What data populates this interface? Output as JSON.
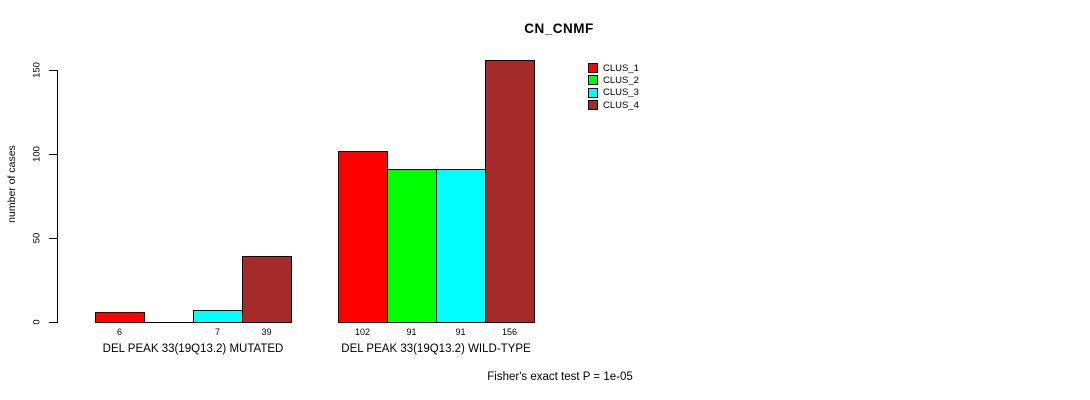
{
  "chart_data": {
    "type": "bar",
    "title": "CN_CNMF",
    "ylabel": "number of cases",
    "xlabel": "",
    "annotation": "Fisher's exact test P = 1e-05",
    "groups": [
      {
        "label": "DEL PEAK 33(19Q13.2) MUTATED"
      },
      {
        "label": "DEL PEAK 33(19Q13.2) WILD-TYPE"
      }
    ],
    "series": [
      {
        "name": "CLUS_1",
        "color": "#FF0000",
        "values": [
          6,
          102
        ]
      },
      {
        "name": "CLUS_2",
        "color": "#00FF00",
        "values": [
          0,
          91
        ]
      },
      {
        "name": "CLUS_3",
        "color": "#00FFFF",
        "values": [
          7,
          91
        ]
      },
      {
        "name": "CLUS_4",
        "color": "#A52A2A",
        "values": [
          39,
          156
        ]
      }
    ],
    "bar_value_labels": [
      [
        "6",
        "",
        "7",
        "39"
      ],
      [
        "102",
        "91",
        "91",
        "156"
      ]
    ],
    "yticks": [
      0,
      50,
      100,
      150
    ],
    "ylim": [
      0,
      160
    ],
    "grid": false,
    "legend_position": "top-right",
    "axis_color": "#000000",
    "background_color": "#FFFFFF"
  }
}
